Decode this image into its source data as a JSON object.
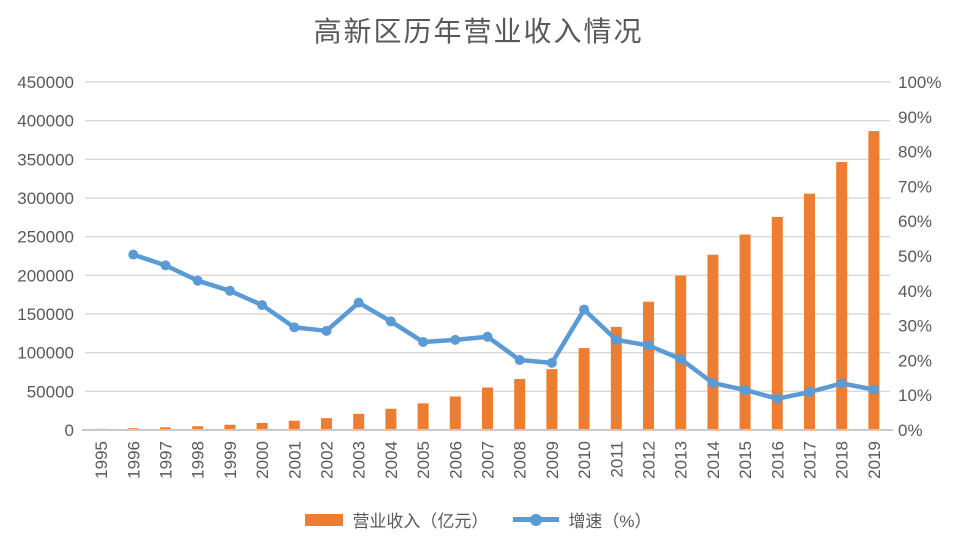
{
  "chart_data": {
    "type": "combo",
    "title": "高新区历年营业收入情况",
    "categories": [
      "1995",
      "1996",
      "1997",
      "1998",
      "1999",
      "2000",
      "2001",
      "2002",
      "2003",
      "2004",
      "2005",
      "2006",
      "2007",
      "2008",
      "2009",
      "2010",
      "2011",
      "2012",
      "2013",
      "2014",
      "2015",
      "2016",
      "2017",
      "2018",
      "2019"
    ],
    "series": [
      {
        "name": "营业收入（亿元）",
        "type": "bar",
        "axis": "left",
        "color": "#ED7D31",
        "values": [
          1529,
          2300,
          3388,
          4840,
          6775,
          9209,
          11928,
          15326,
          20939,
          27466,
          34416,
          43320,
          54925,
          65986,
          78707,
          105917,
          133398,
          165842,
          199659,
          226596,
          252749,
          275580,
          305664,
          346480,
          386523
        ]
      },
      {
        "name": "增速（%）",
        "type": "line",
        "axis": "right",
        "color": "#5B9BD5",
        "values": [
          null,
          50.4,
          47.3,
          42.9,
          40.0,
          35.9,
          29.5,
          28.5,
          36.6,
          31.2,
          25.3,
          25.9,
          26.8,
          20.1,
          19.3,
          34.6,
          25.9,
          24.3,
          20.4,
          13.5,
          11.5,
          9.0,
          10.9,
          13.4,
          11.6
        ]
      }
    ],
    "axes": {
      "left": {
        "min": 0,
        "max": 450000,
        "ticks": [
          "450000",
          "400000",
          "350000",
          "300000",
          "250000",
          "200000",
          "150000",
          "100000",
          "50000",
          "0"
        ]
      },
      "right": {
        "min": 0,
        "max": 100,
        "ticks": [
          "100%",
          "90%",
          "80%",
          "70%",
          "60%",
          "50%",
          "40%",
          "30%",
          "20%",
          "10%",
          "0%"
        ]
      }
    },
    "grid": "horizontal",
    "legend_position": "bottom",
    "colors": {
      "grid": "#D9D9D9",
      "axis_line": "#C9C9C9",
      "tick_text": "#595959",
      "title_text": "#595959",
      "background": "#FFFFFF"
    }
  }
}
